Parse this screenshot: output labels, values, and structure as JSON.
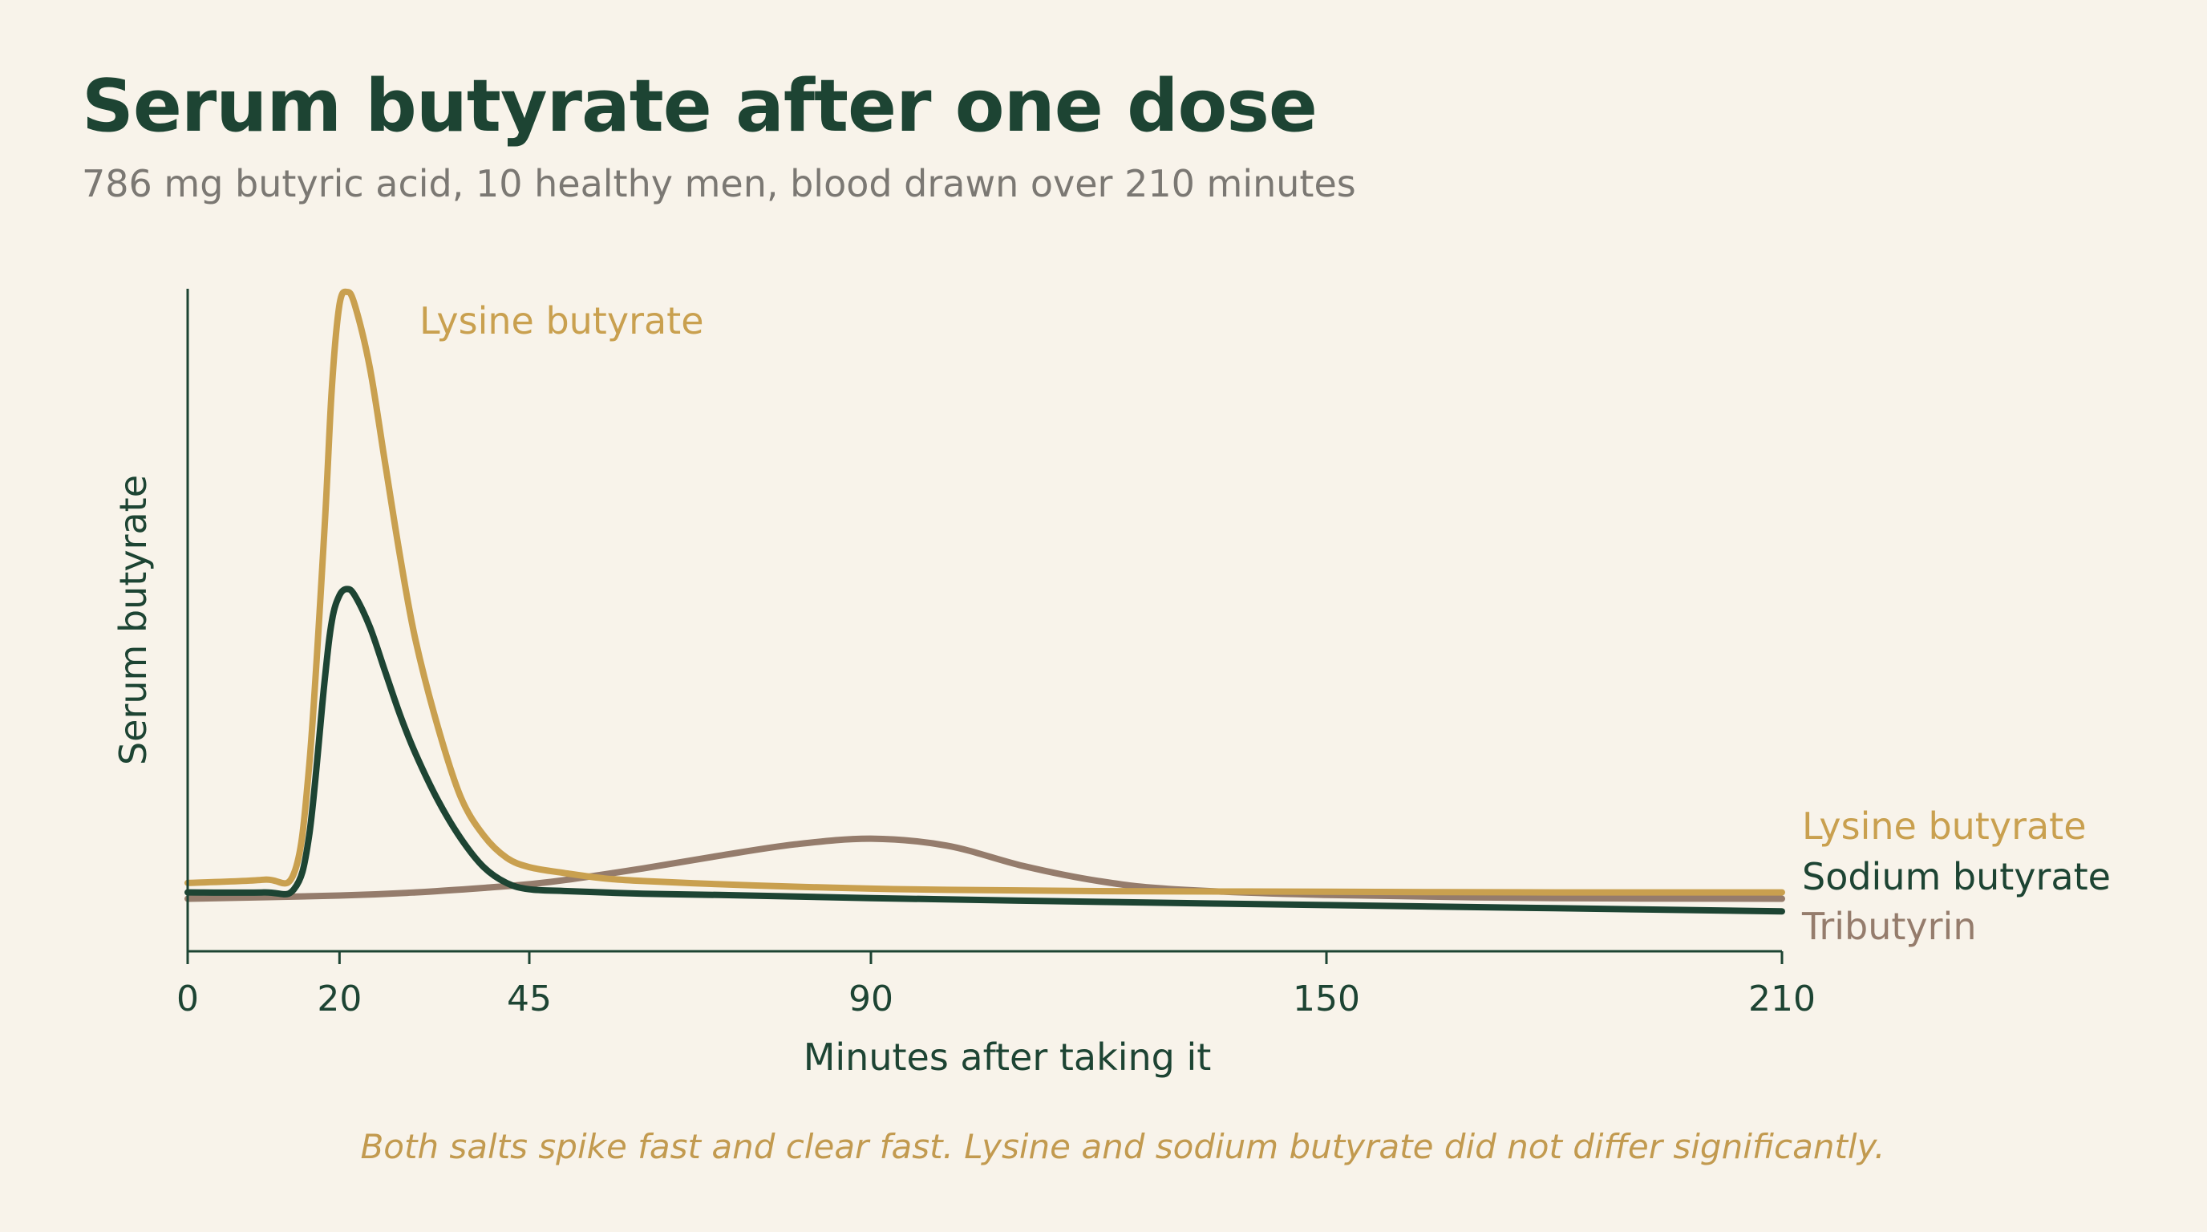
{
  "colors": {
    "background": "#f8f3ea",
    "title": "#1d4433",
    "subtitle": "#7b7873",
    "axis": "#1d4433",
    "note": "#c29a4f"
  },
  "chart_data": {
    "type": "line",
    "title": "Serum butyrate after one dose",
    "subtitle": "786 mg butyric acid, 10 healthy men, blood drawn over 210 minutes",
    "xlabel": "Minutes after taking it",
    "ylabel": "Serum butyrate",
    "xlim": [
      0,
      210
    ],
    "ylim": [
      0,
      100
    ],
    "xticks": [
      0,
      20,
      45,
      90,
      150,
      210
    ],
    "yticks": [],
    "grid": false,
    "legend": "right-end labels",
    "annotation": "Both salts spike fast and clear fast. Lysine and sodium butyrate did not differ significantly.",
    "series": [
      {
        "name": "Lysine butyrate",
        "color": "#c9a04f",
        "x": [
          0,
          10,
          14,
          16,
          18,
          19,
          20,
          21,
          22,
          24,
          26,
          28,
          30,
          33,
          36,
          39,
          42,
          45,
          50,
          55,
          60,
          70,
          80,
          90,
          100,
          120,
          150,
          180,
          210
        ],
        "y": [
          6.5,
          7,
          8,
          25,
          62,
          85,
          98,
          100,
          98,
          88,
          73,
          58,
          45,
          31,
          20,
          14,
          10.5,
          9,
          8,
          7.2,
          6.8,
          6.3,
          5.9,
          5.6,
          5.4,
          5.2,
          5.1,
          5.0,
          5.0
        ]
      },
      {
        "name": "Sodium butyrate",
        "color": "#1d4433",
        "x": [
          0,
          10,
          14,
          16,
          18,
          19,
          20,
          21,
          22,
          24,
          26,
          28,
          30,
          33,
          36,
          39,
          42,
          45,
          50,
          60,
          70,
          90,
          120,
          150,
          180,
          210
        ],
        "y": [
          5,
          5,
          5.5,
          14,
          38,
          48,
          52,
          53,
          52,
          47,
          40,
          33,
          27,
          19.5,
          13.5,
          9,
          6.5,
          5.5,
          5.2,
          4.8,
          4.6,
          4.1,
          3.5,
          3.0,
          2.5,
          2.0
        ]
      },
      {
        "name": "Tributyrin",
        "color": "#957c6c",
        "x": [
          0,
          20,
          30,
          40,
          45,
          50,
          60,
          70,
          80,
          90,
          100,
          110,
          120,
          130,
          150,
          180,
          210
        ],
        "y": [
          4.0,
          4.5,
          5.0,
          5.8,
          6.3,
          7.0,
          8.8,
          10.8,
          12.6,
          13.5,
          12.4,
          9.2,
          6.8,
          5.5,
          4.6,
          4.1,
          4.0
        ]
      }
    ],
    "peak_label": "Lysine butyrate"
  }
}
